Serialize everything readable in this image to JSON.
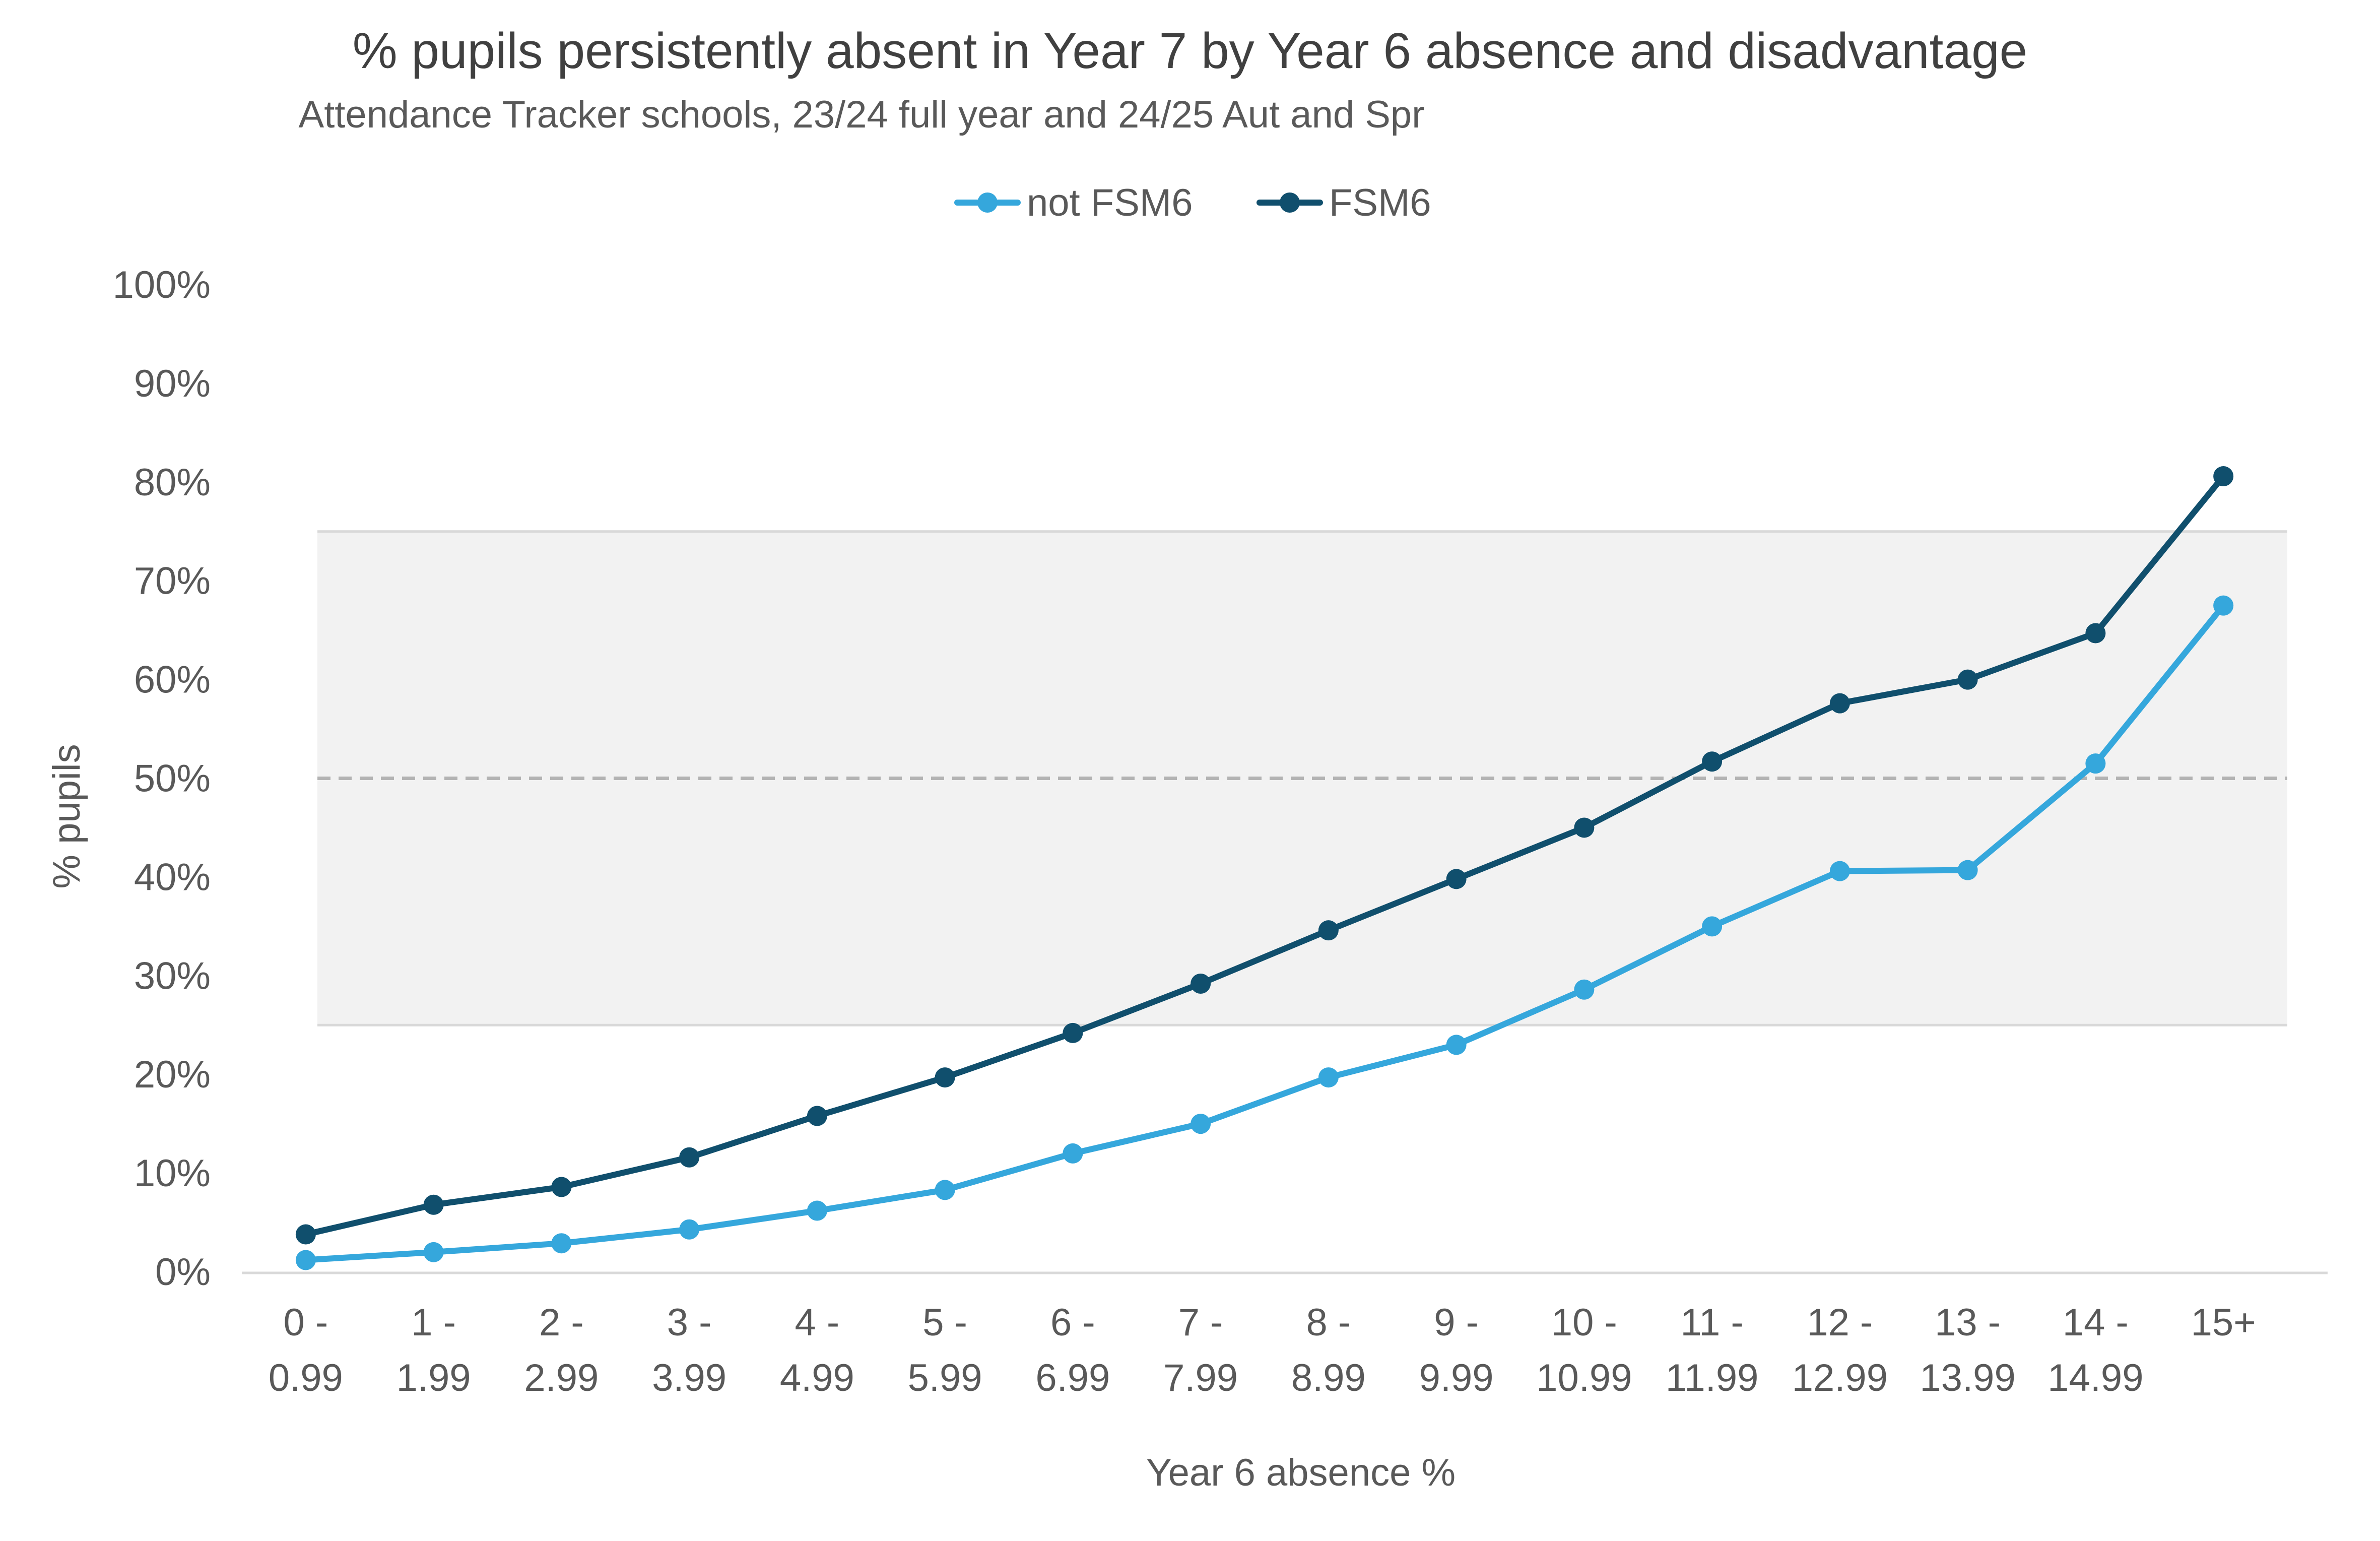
{
  "chart_data": {
    "type": "line",
    "title": "% pupils persistently absent in Year 7 by Year 6 absence and disadvantage",
    "subtitle": "Attendance Tracker schools, 23/24 full year and 24/25 Aut and Spr",
    "xlabel": "Year 6 absence %",
    "ylabel": "% pupils",
    "categories": [
      [
        "0 -",
        "0.99"
      ],
      [
        "1 -",
        "1.99"
      ],
      [
        "2 -",
        "2.99"
      ],
      [
        "3 -",
        "3.99"
      ],
      [
        "4 -",
        "4.99"
      ],
      [
        "5 -",
        "5.99"
      ],
      [
        "6 -",
        "6.99"
      ],
      [
        "7 -",
        "7.99"
      ],
      [
        "8 -",
        "8.99"
      ],
      [
        "9 -",
        "9.99"
      ],
      [
        "10 -",
        "10.99"
      ],
      [
        "11 -",
        "11.99"
      ],
      [
        "12 -",
        "12.99"
      ],
      [
        "13 -",
        "13.99"
      ],
      [
        "14 -",
        "14.99"
      ],
      [
        "15+",
        ""
      ]
    ],
    "yticks": [
      "0%",
      "10%",
      "20%",
      "30%",
      "40%",
      "50%",
      "60%",
      "70%",
      "80%",
      "90%",
      "100%"
    ],
    "ylim": [
      0,
      100
    ],
    "shaded_band": [
      25,
      75
    ],
    "reference_line": 50,
    "legend_position": "top-center",
    "grid": false,
    "series": [
      {
        "name": "not FSM6",
        "color": "#35a7dc",
        "values": [
          1.2,
          2.0,
          2.9,
          4.3,
          6.2,
          8.3,
          12.0,
          15.0,
          19.7,
          23.0,
          28.6,
          35.0,
          40.6,
          40.7,
          51.5,
          67.5
        ]
      },
      {
        "name": "FSM6",
        "color": "#104f6d",
        "values": [
          3.8,
          6.8,
          8.6,
          11.6,
          15.8,
          19.7,
          24.2,
          29.2,
          34.6,
          39.8,
          45.0,
          51.7,
          57.6,
          60.0,
          64.7,
          80.6
        ]
      }
    ],
    "colors": {
      "band": "#f2f2f2",
      "band_edge": "#d9d9d9",
      "reference": "#b3b3b3",
      "axis": "#d9d9d9",
      "text": "#595959",
      "title": "#404040"
    }
  }
}
